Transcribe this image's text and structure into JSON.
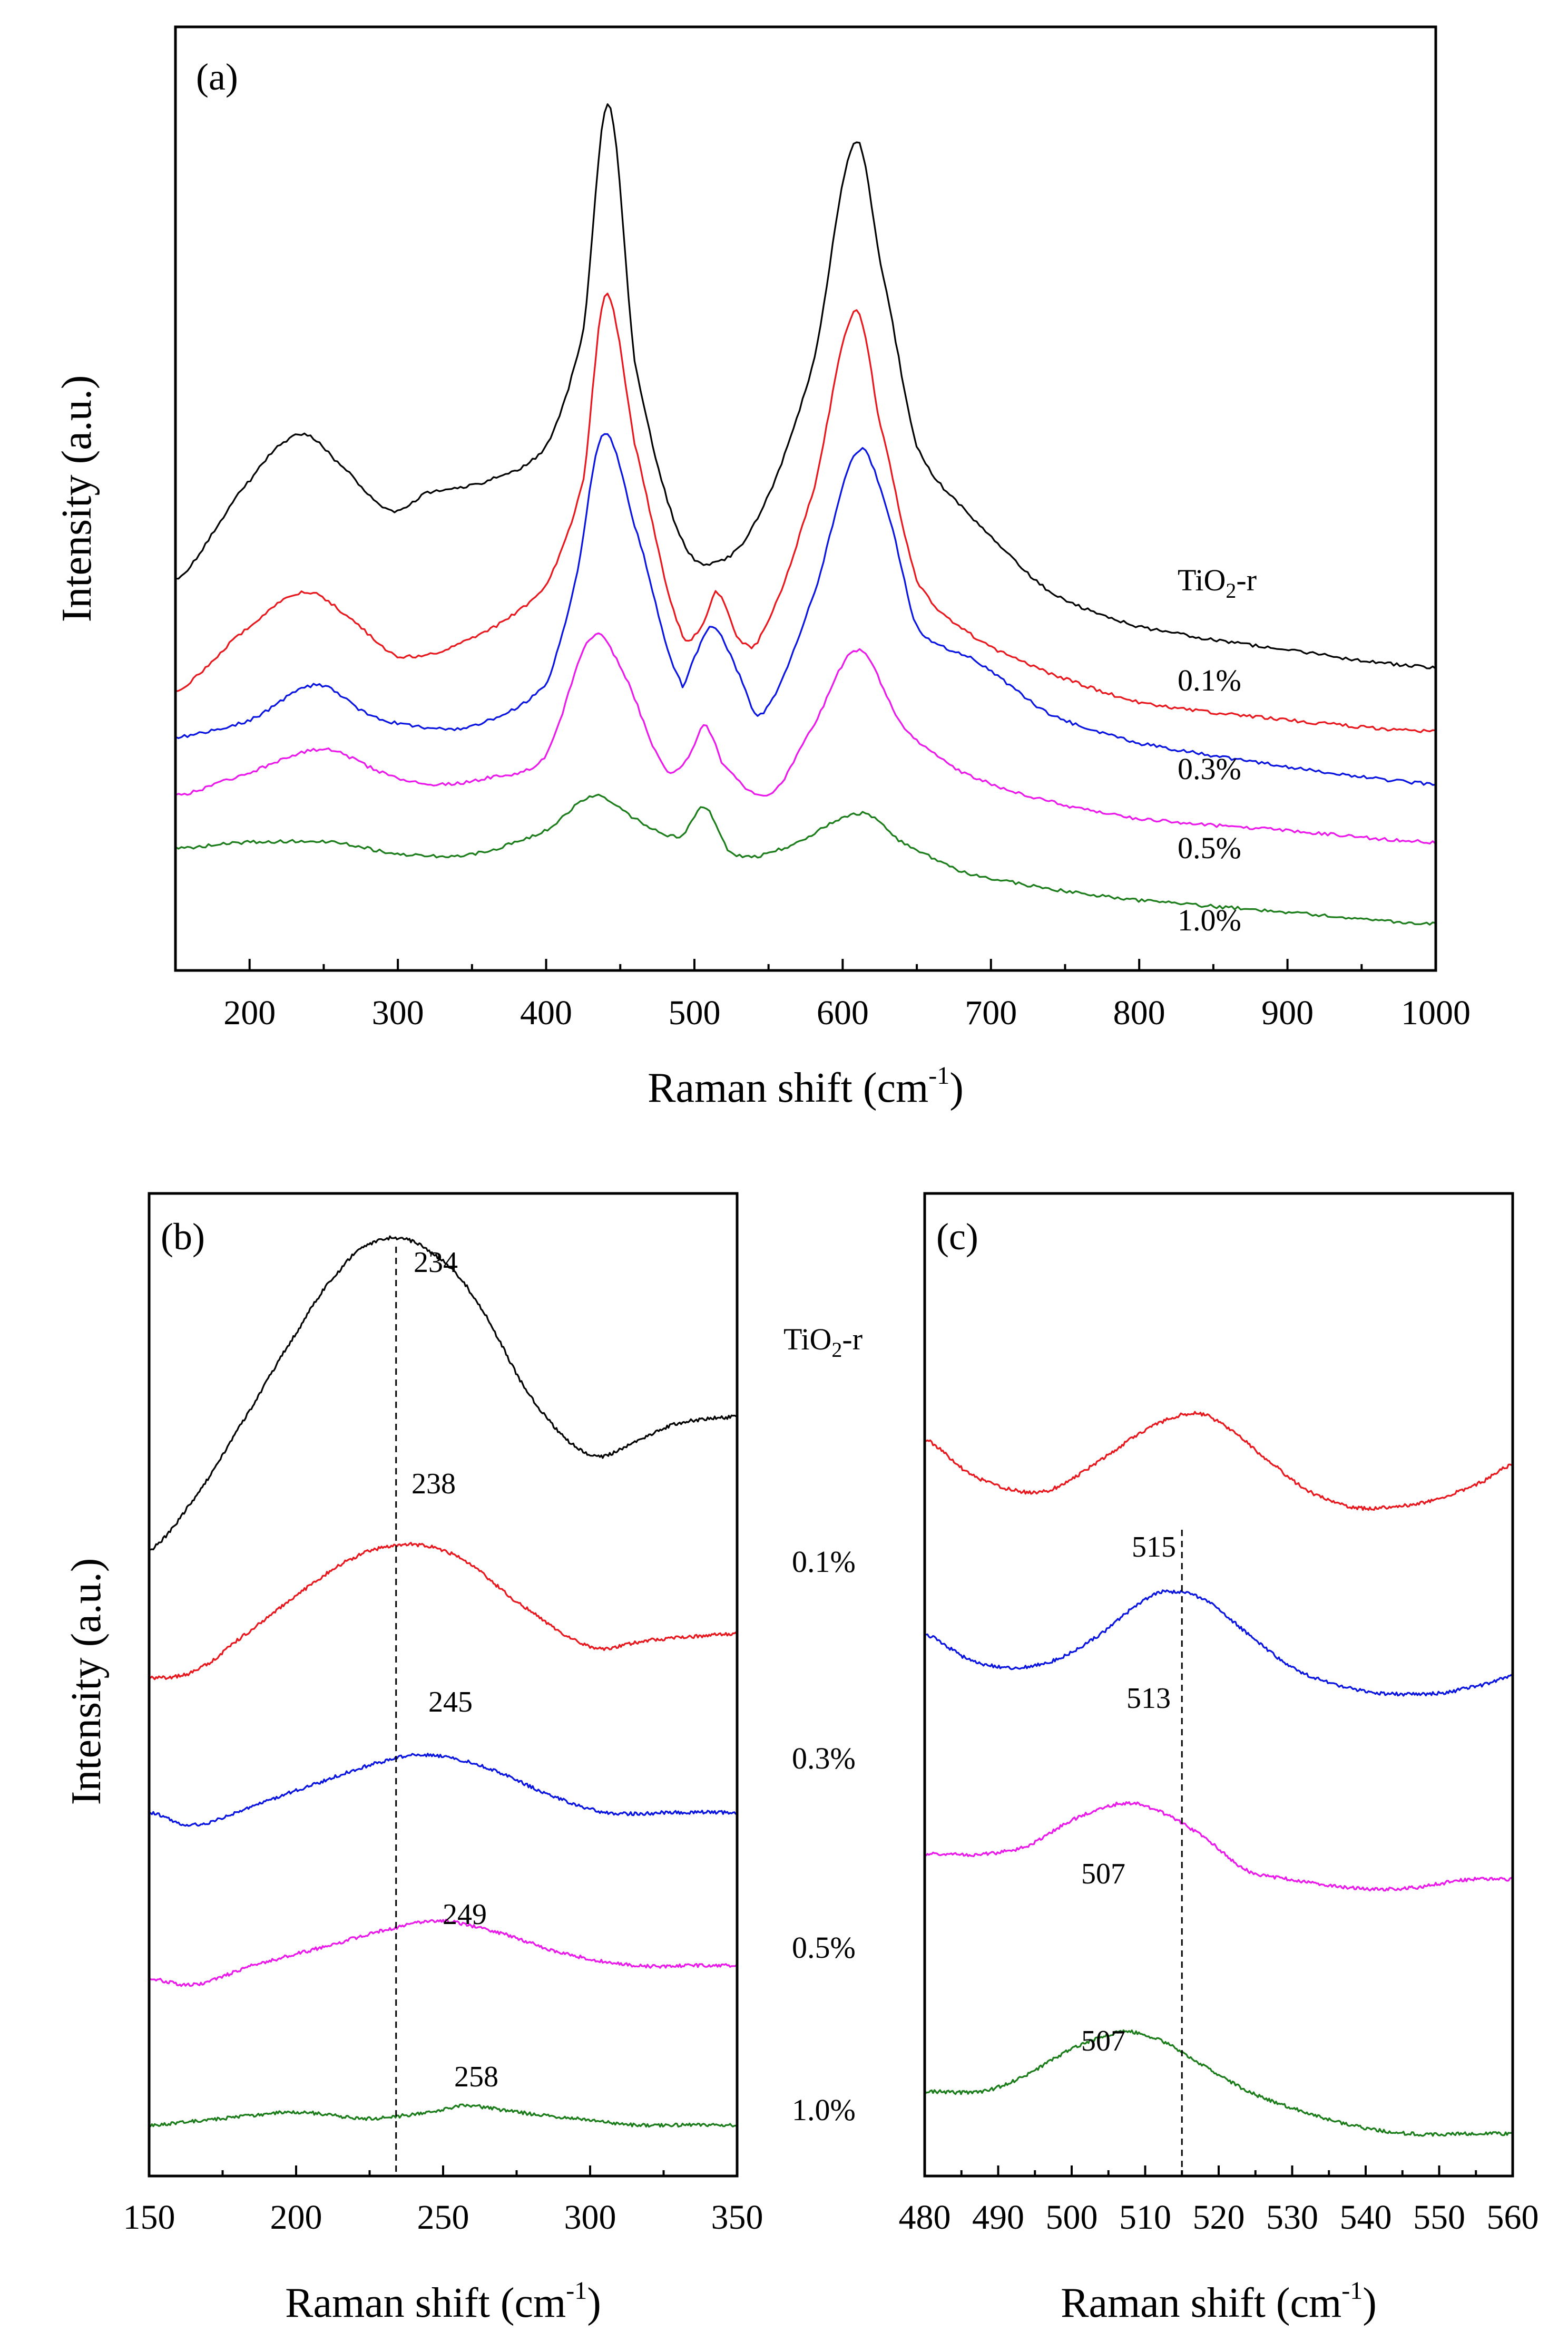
{
  "panels": {
    "a": {
      "label": "(a)",
      "xlabel": "Raman shift (cm",
      "xlabel_sup": "-1",
      "xlabel_end": ")",
      "ylabel": "Intensity (a.u.)",
      "xticks": [
        "200",
        "300",
        "400",
        "500",
        "600",
        "700",
        "800",
        "900",
        "1000"
      ]
    },
    "b": {
      "label": "(b)",
      "xlabel": "Raman shift (cm",
      "xlabel_sup": "-1",
      "xlabel_end": ")",
      "ylabel": "Intensity (a.u.)",
      "xticks": [
        "150",
        "200",
        "250",
        "300",
        "350"
      ]
    },
    "c": {
      "label": "(c)",
      "xlabel": "Raman shift (cm",
      "xlabel_sup": "-1",
      "xlabel_end": ")",
      "xticks": [
        "480",
        "490",
        "500",
        "510",
        "520",
        "530",
        "540",
        "550",
        "560"
      ]
    }
  },
  "series_labels": {
    "s1": {
      "main": "TiO",
      "sub": "2",
      "end": "-r"
    },
    "s2": "0.1%",
    "s3": "0.3%",
    "s4": "0.5%",
    "s5": "1.0%"
  },
  "peak_labels": {
    "b": [
      "234",
      "238",
      "245",
      "249",
      "258"
    ],
    "c": [
      "515",
      "513",
      "507",
      "507"
    ]
  },
  "colors": {
    "s1": "#000000",
    "s2": "#e8171d",
    "s3": "#0a14e0",
    "s4": "#ea18ea",
    "s5": "#1a7d1a"
  },
  "chart_data": [
    {
      "type": "line",
      "panel": "a",
      "xlabel": "Raman shift (cm-1)",
      "ylabel": "Intensity (a.u.)",
      "xlim": [
        150,
        1000
      ],
      "yticks_shown": false,
      "series": [
        {
          "name": "TiO2-r",
          "x": [
            150,
            200,
            234,
            260,
            295,
            320,
            360,
            400,
            425,
            442,
            460,
            490,
            515,
            545,
            580,
            608,
            625,
            650,
            690,
            740,
            800,
            900,
            1000
          ],
          "y": [
            7.3,
            9.0,
            9.8,
            9.3,
            8.5,
            8.8,
            9.0,
            9.6,
            11.6,
            15.5,
            11.0,
            8.1,
            7.6,
            8.5,
            11.0,
            14.8,
            12.8,
            9.6,
            8.3,
            7.1,
            6.5,
            6.1,
            5.8
          ]
        },
        {
          "name": "0.1%",
          "x": [
            150,
            200,
            238,
            270,
            300,
            350,
            400,
            425,
            440,
            460,
            490,
            505,
            515,
            530,
            545,
            580,
            608,
            625,
            650,
            690,
            740,
            800,
            900,
            1000
          ],
          "y": [
            5.4,
            6.5,
            7.1,
            6.6,
            6.0,
            6.3,
            7.2,
            9.0,
            12.2,
            9.6,
            6.5,
            6.5,
            7.1,
            6.3,
            6.4,
            8.8,
            11.9,
            10.0,
            7.3,
            6.3,
            5.7,
            5.2,
            4.9,
            4.7
          ]
        },
        {
          "name": "0.3%",
          "x": [
            150,
            200,
            245,
            280,
            310,
            350,
            400,
            420,
            438,
            460,
            490,
            500,
            513,
            530,
            545,
            580,
            610,
            630,
            650,
            690,
            740,
            800,
            900,
            1000
          ],
          "y": [
            4.6,
            4.9,
            5.5,
            5.0,
            4.8,
            4.8,
            5.5,
            7.3,
            9.8,
            8.2,
            5.6,
            6.0,
            6.5,
            5.7,
            5.0,
            7.0,
            9.5,
            8.5,
            6.5,
            5.9,
            5.0,
            4.5,
            4.1,
            3.8
          ]
        },
        {
          "name": "0.5%",
          "x": [
            150,
            200,
            249,
            290,
            320,
            360,
            400,
            430,
            450,
            480,
            495,
            507,
            520,
            550,
            580,
            610,
            640,
            680,
            740,
            800,
            900,
            1000
          ],
          "y": [
            3.6,
            4.0,
            4.4,
            4.0,
            3.8,
            3.9,
            4.3,
            6.3,
            5.8,
            4.1,
            4.2,
            4.8,
            4.1,
            3.6,
            4.8,
            6.1,
            4.8,
            4.0,
            3.5,
            3.2,
            3.0,
            2.8
          ]
        },
        {
          "name": "1.0%",
          "x": [
            150,
            200,
            258,
            300,
            350,
            400,
            432,
            460,
            490,
            507,
            525,
            560,
            612,
            640,
            680,
            740,
            800,
            900,
            1000
          ],
          "y": [
            2.7,
            2.8,
            2.8,
            2.6,
            2.6,
            3.0,
            3.6,
            3.2,
            2.9,
            3.4,
            2.6,
            2.7,
            3.3,
            2.8,
            2.3,
            2.0,
            1.8,
            1.6,
            1.4
          ]
        }
      ]
    },
    {
      "type": "line",
      "panel": "b",
      "xlabel": "Raman shift (cm-1)",
      "ylabel": "Intensity (a.u.)",
      "xlim": [
        150,
        350
      ],
      "reference_line_x": 234,
      "yticks_shown": false,
      "series": [
        {
          "name": "TiO2-r",
          "peak_label": "234",
          "x": [
            150,
            165,
            180,
            200,
            215,
            225,
            234,
            245,
            260,
            280,
            300,
            315,
            330,
            350
          ],
          "y": [
            10.4,
            11.2,
            12.3,
            13.8,
            14.8,
            15.2,
            15.3,
            15.1,
            14.4,
            12.8,
            11.9,
            12.1,
            12.4,
            12.5
          ]
        },
        {
          "name": "0.1%",
          "peak_label": "238",
          "x": [
            150,
            165,
            180,
            200,
            220,
            238,
            255,
            275,
            300,
            320,
            350
          ],
          "y": [
            8.4,
            8.5,
            9.0,
            9.7,
            10.3,
            10.5,
            10.3,
            9.6,
            8.9,
            9.0,
            9.1
          ]
        },
        {
          "name": "0.3%",
          "peak_label": "245",
          "x": [
            150,
            165,
            185,
            210,
            230,
            245,
            265,
            285,
            305,
            330,
            350
          ],
          "y": [
            6.3,
            6.1,
            6.4,
            6.8,
            7.1,
            7.2,
            7.0,
            6.6,
            6.3,
            6.3,
            6.3
          ]
        },
        {
          "name": "0.5%",
          "peak_label": "249",
          "x": [
            150,
            165,
            185,
            210,
            235,
            249,
            270,
            290,
            315,
            335,
            350
          ],
          "y": [
            3.7,
            3.6,
            3.9,
            4.2,
            4.5,
            4.6,
            4.4,
            4.1,
            3.9,
            3.9,
            3.9
          ]
        },
        {
          "name": "1.0%",
          "peak_label": "258",
          "x": [
            150,
            175,
            200,
            225,
            245,
            258,
            275,
            295,
            315,
            335,
            350
          ],
          "y": [
            1.4,
            1.5,
            1.6,
            1.5,
            1.6,
            1.7,
            1.6,
            1.5,
            1.4,
            1.4,
            1.4
          ]
        }
      ]
    },
    {
      "type": "line",
      "panel": "c",
      "xlabel": "Raman shift (cm-1)",
      "xlim": [
        480,
        560
      ],
      "reference_line_x": 515,
      "yticks_shown": false,
      "series": [
        {
          "name": "0.1%",
          "peak_label": "515",
          "x": [
            480,
            486,
            492,
            497,
            503,
            510,
            516,
            520,
            526,
            532,
            538,
            544,
            550,
            556,
            560
          ],
          "y": [
            9.3,
            8.9,
            8.7,
            8.7,
            9.0,
            9.4,
            9.6,
            9.5,
            9.1,
            8.7,
            8.5,
            8.5,
            8.6,
            8.8,
            9.0
          ]
        },
        {
          "name": "0.3%",
          "peak_label": "513",
          "x": [
            480,
            486,
            492,
            498,
            504,
            510,
            513,
            518,
            524,
            530,
            536,
            542,
            550,
            556,
            560
          ],
          "y": [
            7.0,
            6.7,
            6.6,
            6.7,
            7.0,
            7.4,
            7.5,
            7.4,
            7.0,
            6.6,
            6.4,
            6.3,
            6.3,
            6.4,
            6.5
          ]
        },
        {
          "name": "0.5%",
          "peak_label": "507",
          "x": [
            480,
            488,
            494,
            500,
            507,
            512,
            518,
            524,
            530,
            538,
            546,
            554,
            560
          ],
          "y": [
            4.4,
            4.4,
            4.5,
            4.8,
            5.0,
            4.9,
            4.6,
            4.2,
            4.1,
            4.0,
            4.0,
            4.1,
            4.1
          ]
        },
        {
          "name": "1.0%",
          "peak_label": "507",
          "x": [
            480,
            488,
            494,
            500,
            507,
            512,
            518,
            524,
            530,
            538,
            546,
            554,
            560
          ],
          "y": [
            1.6,
            1.6,
            1.8,
            2.1,
            2.3,
            2.2,
            1.9,
            1.6,
            1.4,
            1.2,
            1.1,
            1.1,
            1.1
          ]
        }
      ]
    }
  ]
}
